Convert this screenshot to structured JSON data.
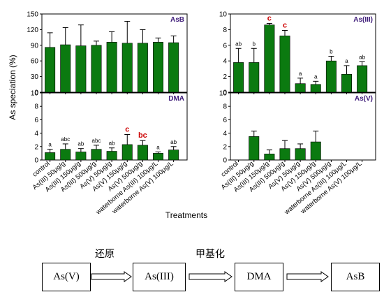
{
  "figure": {
    "ylabel": "As speciation  (%)",
    "xlabel": "Treatments"
  },
  "chart_data": [
    {
      "type": "bar",
      "title": "AsB",
      "ylim": [
        0,
        150
      ],
      "yticks": [
        0,
        30,
        60,
        90,
        120,
        150
      ],
      "categories": [
        "control",
        "As(III) 50μg/g",
        "As(III) 150μg/g",
        "As(III) 500μg/g",
        "As(V) 50μg/g",
        "As(V) 150μg/g",
        "As(V) 500μg/g",
        "waterborne As(III) 100μg/L",
        "waterborne As(V) 100μg/L"
      ],
      "values": [
        86,
        91,
        89,
        90,
        96,
        94,
        94,
        96,
        95
      ],
      "errors": [
        28,
        33,
        40,
        8,
        20,
        42,
        26,
        8,
        13
      ],
      "labels": [
        "",
        "",
        "",
        "",
        "",
        "",
        "",
        "",
        ""
      ],
      "label_colors": []
    },
    {
      "type": "bar",
      "title": "As(III)",
      "ylim": [
        0,
        10
      ],
      "yticks": [
        0,
        2,
        4,
        6,
        8,
        10
      ],
      "categories": [
        "control",
        "As(III) 50μg/g",
        "As(III) 150μg/g",
        "As(III) 500μg/g",
        "As(V) 50μg/g",
        "As(V) 150μg/g",
        "As(V) 500μg/g",
        "waterborne As(III) 100μg/L",
        "waterborne As(V) 100μg/L"
      ],
      "values": [
        3.8,
        3.8,
        8.6,
        7.2,
        1.1,
        1.0,
        4.0,
        2.3,
        3.4
      ],
      "errors": [
        1.8,
        1.8,
        0.2,
        0.7,
        0.7,
        0.4,
        0.6,
        1.1,
        0.5
      ],
      "labels": [
        "ab",
        "b",
        "c",
        "c",
        "a",
        "a",
        "b",
        "a",
        "ab"
      ],
      "label_colors": [
        "#000000",
        "#000000",
        "#cc0000",
        "#cc0000",
        "#000000",
        "#000000",
        "#000000",
        "#000000",
        "#000000"
      ]
    },
    {
      "type": "bar",
      "title": "DMA",
      "ylim": [
        0,
        10
      ],
      "yticks": [
        0,
        2,
        4,
        6,
        8,
        10
      ],
      "categories": [
        "control",
        "As(III) 50μg/g",
        "As(III) 150μg/g",
        "As(III) 500μg/g",
        "As(V) 50μg/g",
        "As(V) 150μg/g",
        "As(V) 500μg/g",
        "waterborne As(III) 100μg/L",
        "waterborne As(V) 100μg/L"
      ],
      "values": [
        1.1,
        1.6,
        1.2,
        1.6,
        1.3,
        2.3,
        2.2,
        1.0,
        1.5
      ],
      "errors": [
        0.5,
        0.8,
        0.5,
        0.6,
        0.5,
        1.5,
        0.7,
        0.2,
        0.5
      ],
      "labels": [
        "a",
        "abc",
        "ab",
        "abc",
        "ab",
        "c",
        "bc",
        "a",
        "ab"
      ],
      "label_colors": [
        "#000000",
        "#000000",
        "#000000",
        "#000000",
        "#000000",
        "#cc0000",
        "#cc0000",
        "#000000",
        "#000000"
      ]
    },
    {
      "type": "bar",
      "title": "As(V)",
      "ylim": [
        0,
        10
      ],
      "yticks": [
        0,
        2,
        4,
        6,
        8,
        10
      ],
      "categories": [
        "control",
        "As(III) 50μg/g",
        "As(III) 150μg/g",
        "As(III) 500μg/g",
        "As(V) 50μg/g",
        "As(V) 150μg/g",
        "As(V) 500μg/g",
        "waterborne As(III) 100μg/L",
        "waterborne As(V) 100μg/L"
      ],
      "values": [
        0,
        3.5,
        0.9,
        1.7,
        1.7,
        2.7,
        0,
        0,
        0
      ],
      "errors": [
        0,
        0.8,
        0.6,
        1.2,
        0.7,
        1.6,
        0,
        0,
        0
      ],
      "labels": [
        "",
        "",
        "",
        "",
        "",
        "",
        "",
        "",
        ""
      ],
      "label_colors": []
    }
  ],
  "flow": {
    "boxes": [
      "As(V)",
      "As(III)",
      "DMA",
      "AsB"
    ],
    "labels": [
      "还原",
      "甲基化"
    ]
  },
  "colors": {
    "bar": "#0b7a10",
    "title": "#3d1a78",
    "significant": "#cc0000"
  }
}
